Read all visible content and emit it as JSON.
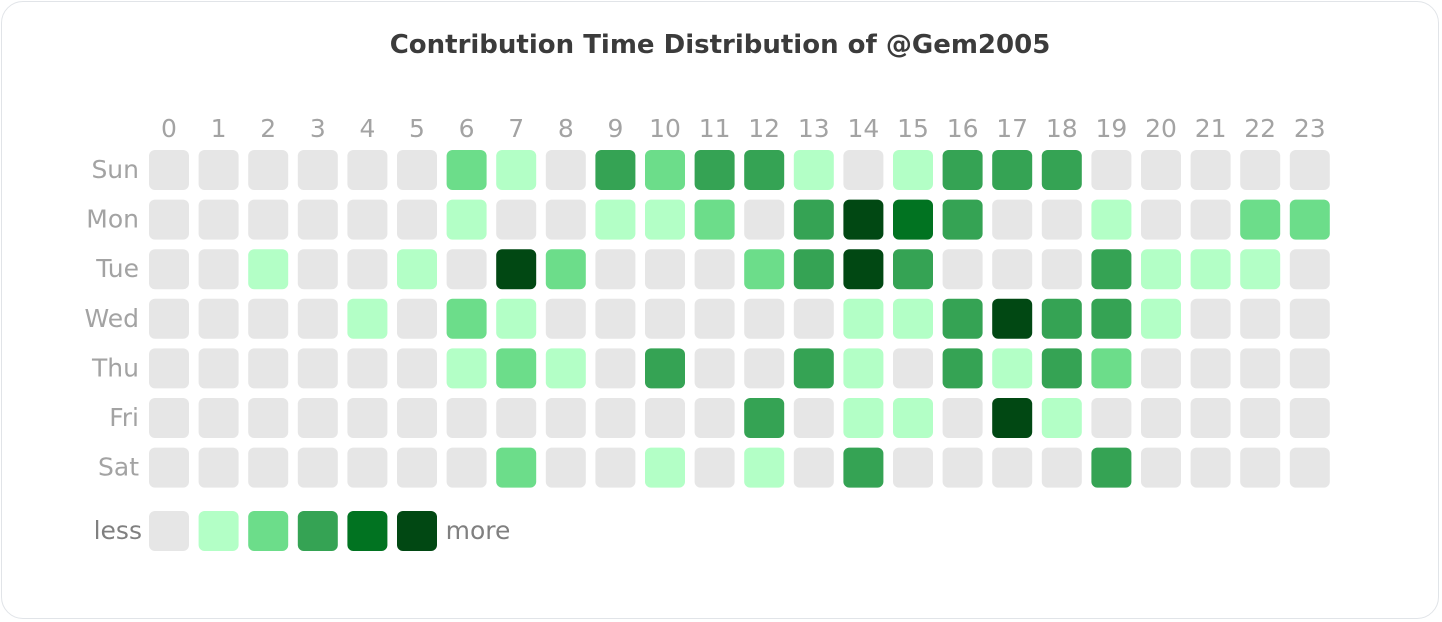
{
  "chart_data": {
    "type": "heatmap",
    "title": "Contribution Time Distribution of @Gem2005",
    "x_labels": [
      "0",
      "1",
      "2",
      "3",
      "4",
      "5",
      "6",
      "7",
      "8",
      "9",
      "10",
      "11",
      "12",
      "13",
      "14",
      "15",
      "16",
      "17",
      "18",
      "19",
      "20",
      "21",
      "22",
      "23"
    ],
    "y_labels": [
      "Sun",
      "Mon",
      "Tue",
      "Wed",
      "Thu",
      "Fri",
      "Sat"
    ],
    "levels": [
      [
        0,
        0,
        0,
        0,
        0,
        0,
        2,
        1,
        0,
        3,
        2,
        3,
        3,
        1,
        0,
        1,
        3,
        3,
        3,
        0,
        0,
        0,
        0,
        0
      ],
      [
        0,
        0,
        0,
        0,
        0,
        0,
        1,
        0,
        0,
        1,
        1,
        2,
        0,
        3,
        5,
        4,
        3,
        0,
        0,
        1,
        0,
        0,
        2,
        2
      ],
      [
        0,
        0,
        1,
        0,
        0,
        1,
        0,
        5,
        2,
        0,
        0,
        0,
        2,
        3,
        5,
        3,
        0,
        0,
        0,
        3,
        1,
        1,
        1,
        0
      ],
      [
        0,
        0,
        0,
        0,
        1,
        0,
        2,
        1,
        0,
        0,
        0,
        0,
        0,
        0,
        1,
        1,
        3,
        5,
        3,
        3,
        1,
        0,
        0,
        0
      ],
      [
        0,
        0,
        0,
        0,
        0,
        0,
        1,
        2,
        1,
        0,
        3,
        0,
        0,
        3,
        1,
        0,
        3,
        1,
        3,
        2,
        0,
        0,
        0,
        0
      ],
      [
        0,
        0,
        0,
        0,
        0,
        0,
        0,
        0,
        0,
        0,
        0,
        0,
        3,
        0,
        1,
        1,
        0,
        5,
        1,
        0,
        0,
        0,
        0,
        0
      ],
      [
        0,
        0,
        0,
        0,
        0,
        0,
        0,
        2,
        0,
        0,
        1,
        0,
        1,
        0,
        3,
        0,
        0,
        0,
        0,
        3,
        0,
        0,
        0,
        0
      ]
    ],
    "level_colors": [
      "#e6e6e6",
      "#b3ffc6",
      "#6cdd8a",
      "#35a354",
      "#017321",
      "#014813"
    ],
    "legend": {
      "less": "less",
      "more": "more"
    }
  }
}
